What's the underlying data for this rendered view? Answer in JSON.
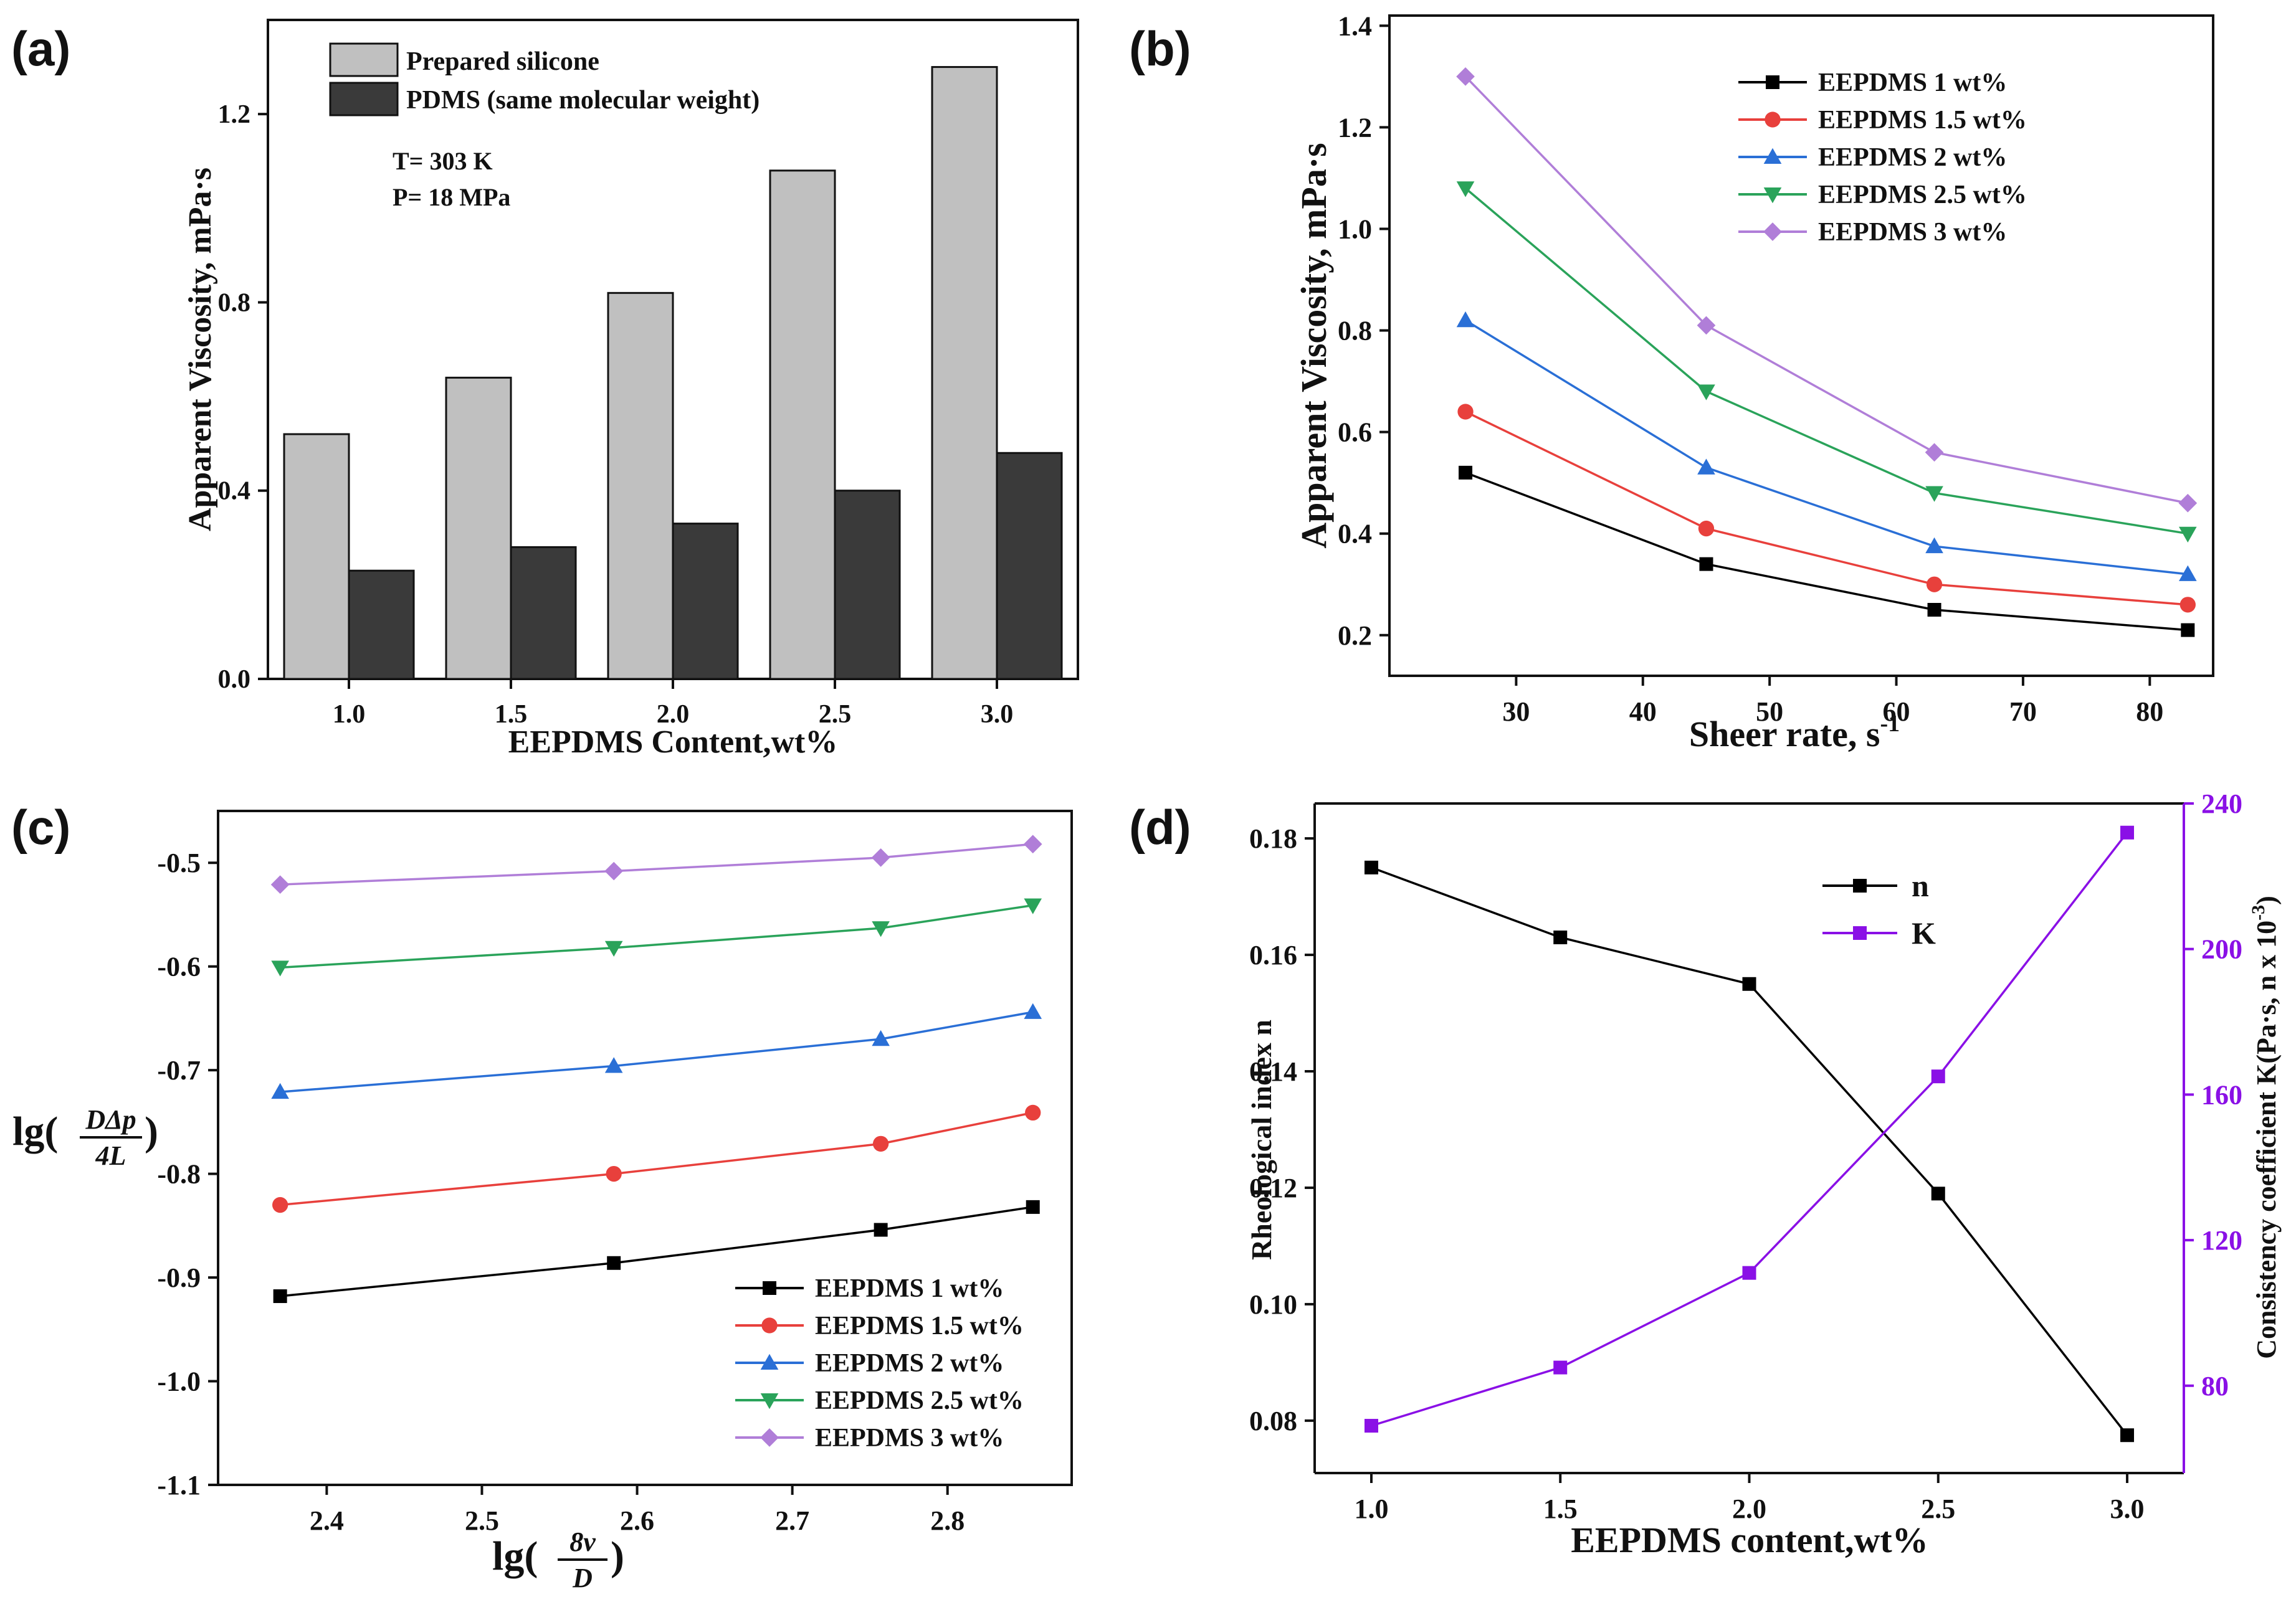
{
  "panel_labels": [
    "(a)",
    "(b)",
    "(c)",
    "(d)"
  ],
  "chart_data": [
    {
      "id": "a",
      "type": "bar",
      "categories": [
        "1.0",
        "1.5",
        "2.0",
        "2.5",
        "3.0"
      ],
      "series": [
        {
          "name": "Prepared silicone",
          "values": [
            0.52,
            0.64,
            0.82,
            1.08,
            1.3
          ],
          "color": "#c0c0c0"
        },
        {
          "name": "PDMS (same molecular weight)",
          "values": [
            0.23,
            0.28,
            0.33,
            0.4,
            0.48
          ],
          "color": "#3a3a3a"
        }
      ],
      "annotations": [
        "T= 303 K",
        "P= 18 MPa"
      ],
      "xlabel": "EEPDMS Content,wt%",
      "ylabel": "Apparent Viscosity, mPa·s",
      "ylim": [
        0,
        1.4
      ],
      "yticks": [
        "0.0",
        "0.4",
        "0.8",
        "1.2"
      ],
      "legend": "top-left"
    },
    {
      "id": "b",
      "type": "line",
      "x": [
        26,
        45,
        63,
        83
      ],
      "series": [
        {
          "name": "EEPDMS 1 wt%",
          "values": [
            0.52,
            0.34,
            0.25,
            0.21
          ],
          "color": "#000000",
          "marker": "square"
        },
        {
          "name": "EEPDMS 1.5 wt%",
          "values": [
            0.64,
            0.41,
            0.3,
            0.26
          ],
          "color": "#e8403c",
          "marker": "circle"
        },
        {
          "name": "EEPDMS 2 wt%",
          "values": [
            0.82,
            0.53,
            0.375,
            0.32
          ],
          "color": "#2a6fd6",
          "marker": "triangle-up"
        },
        {
          "name": "EEPDMS 2.5 wt%",
          "values": [
            1.08,
            0.68,
            0.48,
            0.4
          ],
          "color": "#2aa35a",
          "marker": "triangle-down"
        },
        {
          "name": "EEPDMS 3 wt%",
          "values": [
            1.3,
            0.81,
            0.56,
            0.46
          ],
          "color": "#b07ed8",
          "marker": "diamond"
        }
      ],
      "xlabel": "Sheer rate, s",
      "xlabel_sup": "-1",
      "ylabel": "Apparent Viscosity, mPa·s",
      "xlim": [
        20,
        85
      ],
      "ylim": [
        0.12,
        1.42
      ],
      "xticks": [
        "30",
        "40",
        "50",
        "60",
        "70",
        "80"
      ],
      "yticks": [
        "0.2",
        "0.4",
        "0.6",
        "0.8",
        "1.0",
        "1.2",
        "1.4"
      ],
      "legend": "top-right"
    },
    {
      "id": "c",
      "type": "line",
      "x": [
        2.37,
        2.585,
        2.757,
        2.855
      ],
      "series": [
        {
          "name": "EEPDMS 1 wt%",
          "values": [
            -0.918,
            -0.886,
            -0.854,
            -0.832
          ],
          "color": "#000000",
          "marker": "square"
        },
        {
          "name": "EEPDMS 1.5 wt%",
          "values": [
            -0.83,
            -0.8,
            -0.771,
            -0.741
          ],
          "color": "#e8403c",
          "marker": "circle"
        },
        {
          "name": "EEPDMS 2 wt%",
          "values": [
            -0.721,
            -0.696,
            -0.67,
            -0.644
          ],
          "color": "#2a6fd6",
          "marker": "triangle-up"
        },
        {
          "name": "EEPDMS 2.5 wt%",
          "values": [
            -0.601,
            -0.582,
            -0.563,
            -0.541
          ],
          "color": "#2aa35a",
          "marker": "triangle-down"
        },
        {
          "name": "EEPDMS 3 wt%",
          "values": [
            -0.521,
            -0.508,
            -0.495,
            -0.482
          ],
          "color": "#b07ed8",
          "marker": "diamond"
        }
      ],
      "xlabel": "lg(8v/D)",
      "ylabel": "lg(DΔp/4L)",
      "xlim": [
        2.33,
        2.88
      ],
      "ylim": [
        -1.1,
        -0.45
      ],
      "xticks": [
        "2.4",
        "2.5",
        "2.6",
        "2.7",
        "2.8"
      ],
      "yticks": [
        "-1.1",
        "-1.0",
        "-0.9",
        "-0.8",
        "-0.7",
        "-0.6",
        "-0.5"
      ],
      "legend": "bottom-right"
    },
    {
      "id": "d",
      "type": "line",
      "x": [
        1.0,
        1.5,
        2.0,
        2.5,
        3.0
      ],
      "series": [
        {
          "name": "n",
          "axis": "left",
          "values": [
            0.175,
            0.163,
            0.155,
            0.119,
            0.0775
          ],
          "color": "#000000",
          "marker": "square"
        },
        {
          "name": "K",
          "axis": "right",
          "values": [
            69,
            85,
            111,
            165,
            232
          ],
          "color": "#8a10e6",
          "marker": "square"
        }
      ],
      "xlabel": "EEPDMS content,wt%",
      "ylabel": "Rheological index n",
      "ylabel_right": "Consistency coefficient K(Pa·s, n x 10",
      "ylabel_right_sup": "-3",
      "ylabel_right_end": ")",
      "xlim": [
        0.85,
        3.15
      ],
      "ylim": [
        0.071,
        0.186
      ],
      "ylim_right": [
        56,
        240
      ],
      "xticks": [
        "1.0",
        "1.5",
        "2.0",
        "2.5",
        "3.0"
      ],
      "yticks": [
        "0.08",
        "0.10",
        "0.12",
        "0.14",
        "0.16",
        "0.18"
      ],
      "yticks_right": [
        "80",
        "120",
        "160",
        "200",
        "240"
      ],
      "legend": "top-center"
    }
  ]
}
